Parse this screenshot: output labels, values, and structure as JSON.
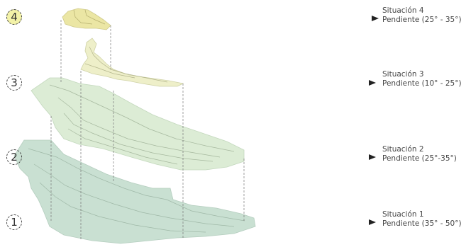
{
  "levels": [
    {
      "number": "4",
      "situation": "Situación 4",
      "slope": "Pendiente (25° - 35°)"
    },
    {
      "number": "3",
      "situation": "Situación 3",
      "slope": "Pendiente (10° - 25°)"
    },
    {
      "number": "2",
      "situation": "Situación 2",
      "slope": "Pendiente (25°-35°)"
    },
    {
      "number": "1",
      "situation": "Situación 1",
      "slope": "Pendiente (35° - 50°)"
    }
  ],
  "colors": {
    "level4_fill": "#ece9a6",
    "level3_fill": "#eeeec8",
    "level2_fill": "#d8ebd2",
    "level1_fill": "#c6dfcf",
    "contour": "#9aa89a",
    "dashed_line": "#666666",
    "number_4_highlight": "#f3f2a8"
  }
}
